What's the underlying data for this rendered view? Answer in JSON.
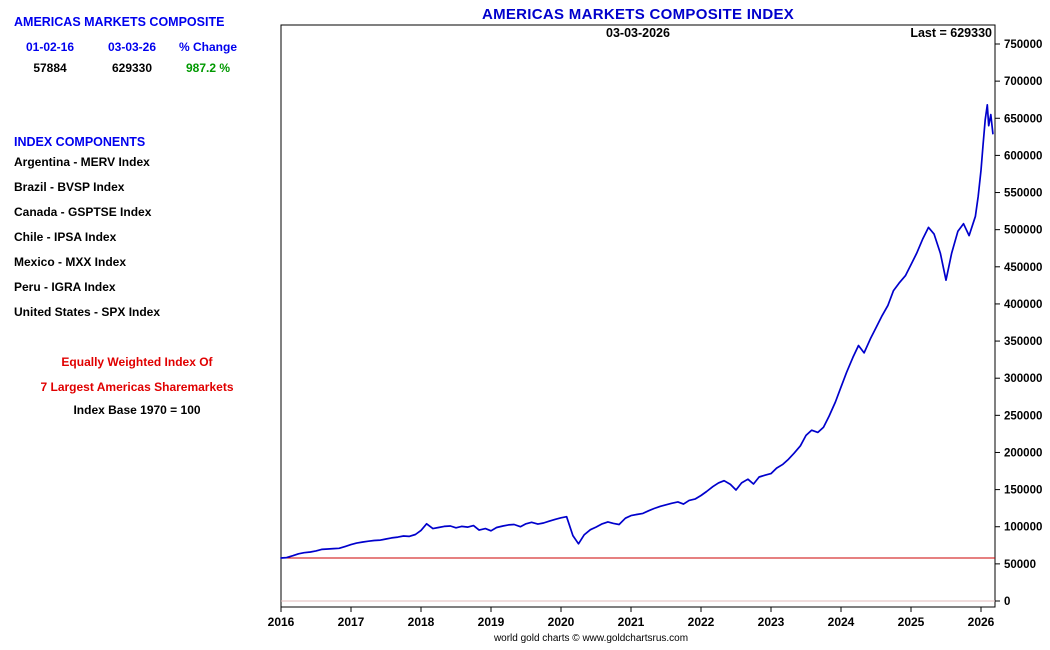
{
  "header": {
    "title": "AMERICAS MARKETS COMPOSITE INDEX"
  },
  "left_panel": {
    "title": "AMERICAS MARKETS COMPOSITE",
    "col_headers": [
      "01-02-16",
      "03-03-26",
      "% Change"
    ],
    "col_values": [
      "57884",
      "629330",
      "987.2 %"
    ],
    "components_title": "INDEX COMPONENTS",
    "components": [
      "Argentina - MERV Index",
      "Brazil - BVSP Index",
      "Canada - GSPTSE Index",
      "Chile - IPSA Index",
      "Mexico - MXX Index",
      "Peru - IGRA Index",
      "United States - SPX Index"
    ],
    "note_red_1": "Equally Weighted Index Of",
    "note_red_2": "7 Largest Americas Sharemarkets",
    "note_base": "Index Base 1970 = 100"
  },
  "chart_annotations": {
    "date": "03-03-2026",
    "last": "Last = 629330"
  },
  "footer": "world gold charts © www.goldchartsrus.com",
  "chart_data": {
    "type": "line",
    "title": "AMERICAS MARKETS COMPOSITE INDEX",
    "series_name": "Americas Markets Composite Index",
    "line_color": "#0000cc",
    "ref_line": {
      "value": 57884,
      "color": "#cc0000"
    },
    "zero_line_color": "#e0b8b8",
    "grid": false,
    "legend": "none",
    "xlabel": "",
    "ylabel": "",
    "xlim": [
      2016,
      2026.2
    ],
    "ylim": [
      0,
      780000
    ],
    "x_ticks": [
      2016,
      2017,
      2018,
      2019,
      2020,
      2021,
      2022,
      2023,
      2024,
      2025,
      2026
    ],
    "y_ticks": [
      0,
      50000,
      100000,
      150000,
      200000,
      250000,
      300000,
      350000,
      400000,
      450000,
      500000,
      550000,
      600000,
      650000,
      700000,
      750000
    ],
    "x": [
      2016.0,
      2016.08,
      2016.17,
      2016.25,
      2016.33,
      2016.42,
      2016.5,
      2016.58,
      2016.67,
      2016.75,
      2016.83,
      2016.92,
      2017.0,
      2017.08,
      2017.17,
      2017.25,
      2017.33,
      2017.42,
      2017.5,
      2017.58,
      2017.67,
      2017.75,
      2017.83,
      2017.92,
      2018.0,
      2018.08,
      2018.17,
      2018.25,
      2018.33,
      2018.42,
      2018.5,
      2018.58,
      2018.67,
      2018.75,
      2018.83,
      2018.92,
      2019.0,
      2019.08,
      2019.17,
      2019.25,
      2019.33,
      2019.42,
      2019.5,
      2019.58,
      2019.67,
      2019.75,
      2019.83,
      2019.92,
      2020.0,
      2020.08,
      2020.17,
      2020.25,
      2020.33,
      2020.42,
      2020.5,
      2020.58,
      2020.67,
      2020.75,
      2020.83,
      2020.92,
      2021.0,
      2021.08,
      2021.17,
      2021.25,
      2021.33,
      2021.42,
      2021.5,
      2021.58,
      2021.67,
      2021.75,
      2021.83,
      2021.92,
      2022.0,
      2022.08,
      2022.17,
      2022.25,
      2022.33,
      2022.42,
      2022.5,
      2022.58,
      2022.67,
      2022.75,
      2022.83,
      2022.92,
      2023.0,
      2023.08,
      2023.17,
      2023.25,
      2023.33,
      2023.42,
      2023.5,
      2023.58,
      2023.67,
      2023.75,
      2023.83,
      2023.92,
      2024.0,
      2024.08,
      2024.17,
      2024.25,
      2024.33,
      2024.42,
      2024.5,
      2024.58,
      2024.67,
      2024.75,
      2024.83,
      2024.92,
      2025.0,
      2025.08,
      2025.17,
      2025.25,
      2025.33,
      2025.42,
      2025.5,
      2025.58,
      2025.67,
      2025.75,
      2025.83,
      2025.92,
      2025.96,
      2026.0,
      2026.03,
      2026.06,
      2026.09,
      2026.11,
      2026.14,
      2026.17
    ],
    "values": [
      57884,
      58500,
      61000,
      63500,
      65000,
      66000,
      67500,
      69500,
      70000,
      70500,
      71000,
      73500,
      76000,
      78000,
      79500,
      80500,
      81500,
      82000,
      83500,
      85000,
      86000,
      87500,
      87000,
      89500,
      95000,
      104000,
      97500,
      99000,
      100500,
      101000,
      98500,
      100500,
      99500,
      101500,
      95500,
      97500,
      94500,
      99000,
      101000,
      102500,
      103000,
      100000,
      104000,
      106000,
      103500,
      105000,
      107500,
      110000,
      112000,
      113500,
      88000,
      77000,
      89000,
      96000,
      99500,
      103500,
      106500,
      104500,
      103000,
      111500,
      115000,
      116500,
      118000,
      121500,
      124500,
      127500,
      129500,
      131500,
      133500,
      130500,
      135500,
      137500,
      142000,
      147500,
      154000,
      159000,
      162000,
      157000,
      149500,
      159000,
      164000,
      157500,
      167000,
      169500,
      171500,
      179000,
      184000,
      191000,
      199000,
      209000,
      223000,
      230000,
      227000,
      234000,
      249000,
      268000,
      288000,
      308000,
      328000,
      344000,
      334000,
      353000,
      368000,
      383000,
      398000,
      418000,
      428000,
      438000,
      453000,
      468000,
      488000,
      503000,
      494000,
      468000,
      432000,
      468000,
      498000,
      508000,
      492000,
      518000,
      545000,
      580000,
      615000,
      648000,
      668000,
      640000,
      655000,
      629330
    ]
  }
}
